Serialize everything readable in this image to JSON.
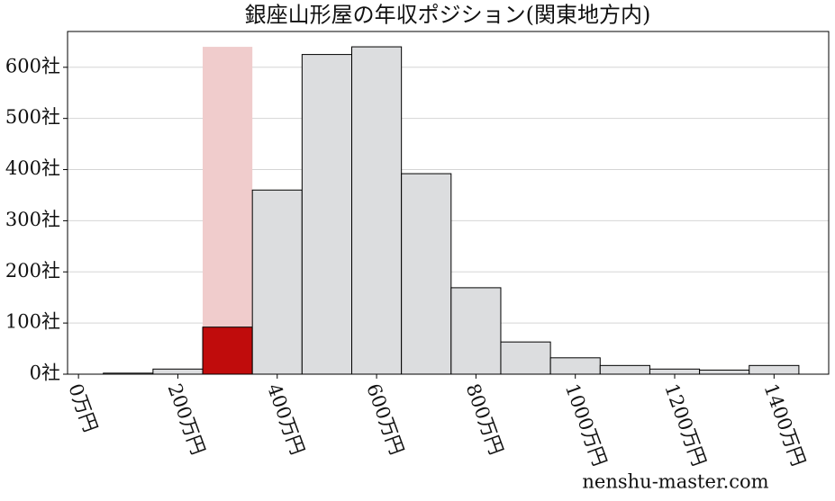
{
  "chart_data": {
    "type": "histogram",
    "title": "銀座山形屋の年収ポジション(関東地方内)",
    "bins": [
      50,
      150,
      250,
      350,
      450,
      550,
      650,
      750,
      850,
      950,
      1050,
      1150,
      1250,
      1350,
      1450
    ],
    "values": [
      2,
      10,
      92,
      360,
      625,
      640,
      392,
      169,
      63,
      32,
      17,
      10,
      8,
      17
    ],
    "color": "#dcdddf",
    "highlight_color": "#c00c0c",
    "highlight_band_color": "#f0cccc",
    "highlight_index": 2,
    "xlim": [
      -22,
      1510
    ],
    "ylim": [
      0,
      670
    ],
    "xticks": [
      {
        "value": 0,
        "label": "0万円"
      },
      {
        "value": 200,
        "label": "200万円"
      },
      {
        "value": 400,
        "label": "400万円"
      },
      {
        "value": 600,
        "label": "600万円"
      },
      {
        "value": 800,
        "label": "800万円"
      },
      {
        "value": 1000,
        "label": "1000万円"
      },
      {
        "value": 1200,
        "label": "1200万円"
      },
      {
        "value": 1400,
        "label": "1400万円"
      }
    ],
    "yticks": [
      {
        "value": 0,
        "label": "0社"
      },
      {
        "value": 100,
        "label": "100社"
      },
      {
        "value": 200,
        "label": "200社"
      },
      {
        "value": 300,
        "label": "300社"
      },
      {
        "value": 400,
        "label": "400社"
      },
      {
        "value": 500,
        "label": "500社"
      },
      {
        "value": 600,
        "label": "600社"
      }
    ],
    "grid": true,
    "watermark": "nenshu-master.com"
  }
}
